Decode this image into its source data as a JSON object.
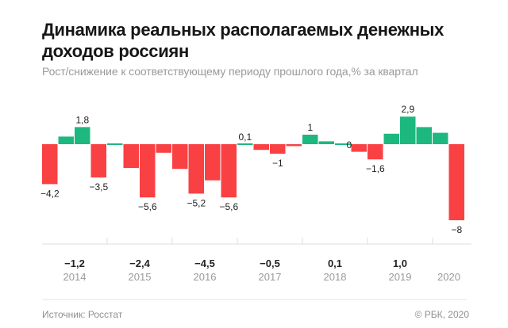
{
  "header": {
    "title": "Динамика реальных располагаемых денежных доходов россиян",
    "subtitle": "Рост/снижение к соответствующему периоду прошлого года,% за квартал"
  },
  "footer": {
    "source": "Источник: Росстат",
    "copyright": "© РБК, 2020"
  },
  "colors": {
    "positive": "#1db87f",
    "negative": "#f94144",
    "axis": "#dddddd",
    "label": "#222222",
    "year": "#9a9a9a"
  },
  "chart_data": {
    "type": "bar",
    "title": "Динамика реальных располагаемых денежных доходов россиян",
    "subtitle": "Рост/снижение к соответствующему периоду прошлого года,% за квартал",
    "xlabel": "",
    "ylabel": "",
    "grid": false,
    "ylim": [
      -8.5,
      3.2
    ],
    "years": [
      {
        "year": "2014",
        "annual": "−1,2",
        "quarters": [
          -4.2,
          0.8,
          1.8,
          -3.5
        ]
      },
      {
        "year": "2015",
        "annual": "−2,4",
        "quarters": [
          0.1,
          -2.5,
          -5.6,
          -0.9
        ]
      },
      {
        "year": "2016",
        "annual": "−4,5",
        "quarters": [
          -2.6,
          -5.2,
          -3.8,
          -5.6
        ]
      },
      {
        "year": "2017",
        "annual": "−0,5",
        "quarters": [
          0.1,
          -0.6,
          -1.0,
          -0.2
        ]
      },
      {
        "year": "2018",
        "annual": "0,1",
        "quarters": [
          1.0,
          0.3,
          0.0,
          -0.8
        ]
      },
      {
        "year": "2019",
        "annual": "1,0",
        "quarters": [
          -1.6,
          1.1,
          2.9,
          1.8
        ]
      },
      {
        "year": "2020",
        "annual": "",
        "quarters": [
          1.2,
          -8.0
        ]
      }
    ],
    "data_labels": [
      {
        "bar": 0,
        "text": "−4,2"
      },
      {
        "bar": 2,
        "text": "1,8"
      },
      {
        "bar": 3,
        "text": "−3,5"
      },
      {
        "bar": 6,
        "text": "−5,6"
      },
      {
        "bar": 9,
        "text": "−5,2"
      },
      {
        "bar": 11,
        "text": "−5,6"
      },
      {
        "bar": 12,
        "text": "0,1"
      },
      {
        "bar": 14,
        "text": "−1"
      },
      {
        "bar": 16,
        "text": "1"
      },
      {
        "bar": 18,
        "text": "0"
      },
      {
        "bar": 20,
        "text": "−1,6"
      },
      {
        "bar": 22,
        "text": "2,9"
      },
      {
        "bar": 25,
        "text": "−8"
      }
    ]
  }
}
